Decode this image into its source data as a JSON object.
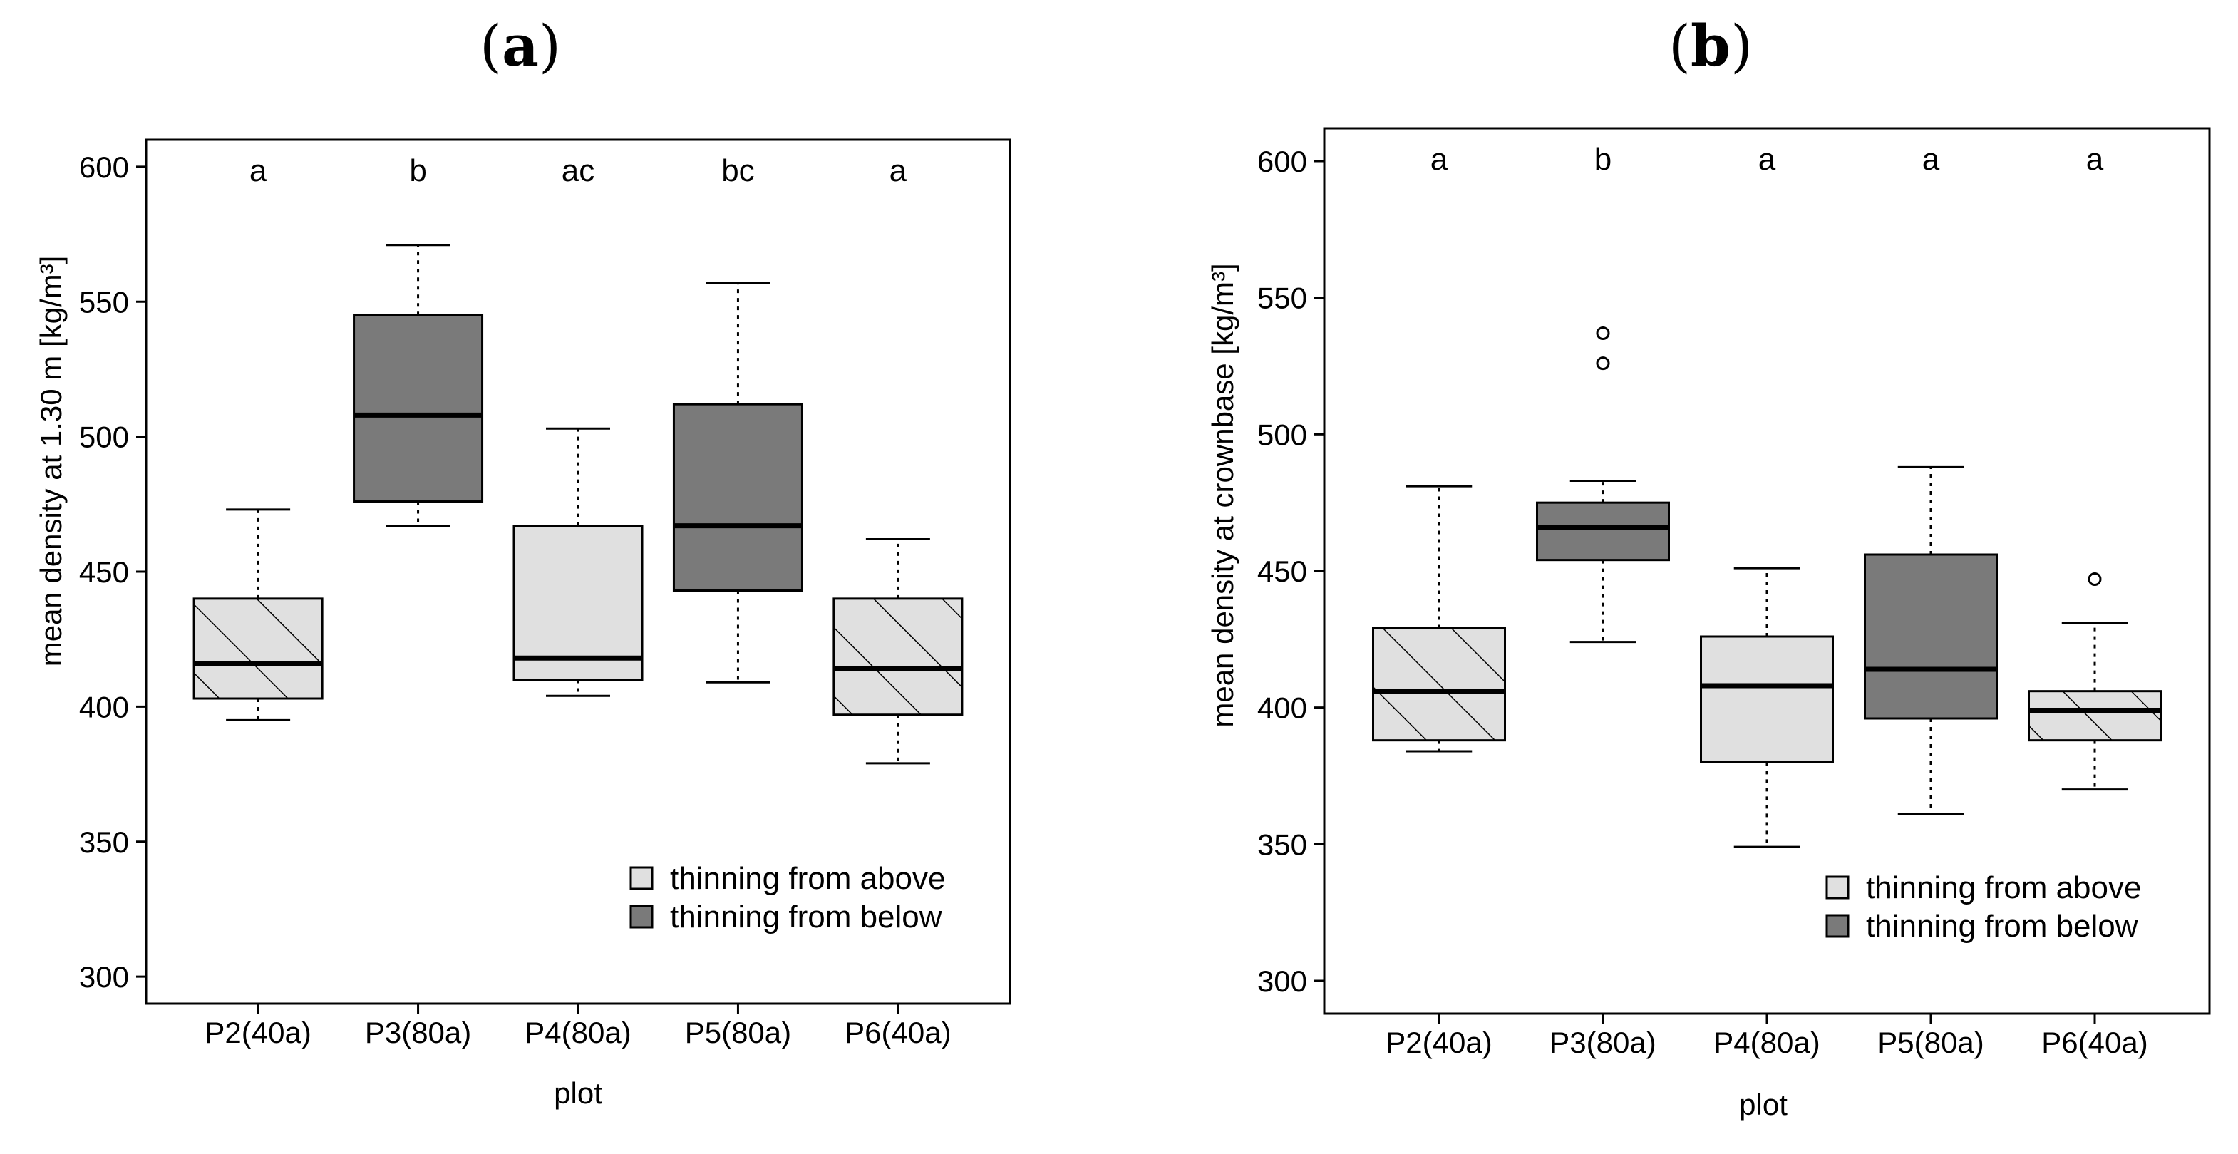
{
  "chart_data": [
    {
      "type": "box",
      "panel_label": "a",
      "xlabel": "plot",
      "ylabel": "mean density at 1.30 m [kg/m³]",
      "ylim": [
        290,
        610
      ],
      "yticks": [
        300,
        350,
        400,
        450,
        500,
        550,
        600
      ],
      "categories": [
        "P2(40a)",
        "P3(80a)",
        "P4(80a)",
        "P5(80a)",
        "P6(40a)"
      ],
      "boxes": [
        {
          "min": 395,
          "q1": 403,
          "median": 416,
          "q3": 440,
          "max": 473,
          "group": "above",
          "age": "40a",
          "outliers": []
        },
        {
          "min": 467,
          "q1": 476,
          "median": 508,
          "q3": 545,
          "max": 571,
          "group": "below",
          "age": "80a",
          "outliers": []
        },
        {
          "min": 404,
          "q1": 410,
          "median": 418,
          "q3": 467,
          "max": 503,
          "group": "above",
          "age": "80a",
          "outliers": []
        },
        {
          "min": 409,
          "q1": 443,
          "median": 467,
          "q3": 512,
          "max": 557,
          "group": "below",
          "age": "80a",
          "outliers": []
        },
        {
          "min": 379,
          "q1": 397,
          "median": 414,
          "q3": 440,
          "max": 462,
          "group": "above",
          "age": "40a",
          "outliers": []
        }
      ],
      "significance": [
        "a",
        "b",
        "ac",
        "bc",
        "a"
      ],
      "significance_y": 600,
      "legend": [
        {
          "label": "thinning from above",
          "color": "#e0e0e0"
        },
        {
          "label": "thinning from below",
          "color": "#7a7a7a"
        }
      ],
      "legend_position": "bottom-right"
    },
    {
      "type": "box",
      "panel_label": "b",
      "xlabel": "plot",
      "ylabel": "mean density at crownbase [kg/m³]",
      "ylim": [
        288,
        612
      ],
      "yticks": [
        300,
        350,
        400,
        450,
        500,
        550,
        600
      ],
      "categories": [
        "P2(40a)",
        "P3(80a)",
        "P4(80a)",
        "P5(80a)",
        "P6(40a)"
      ],
      "boxes": [
        {
          "min": 384,
          "q1": 388,
          "median": 406,
          "q3": 429,
          "max": 481,
          "group": "above",
          "age": "40a",
          "outliers": []
        },
        {
          "min": 424,
          "q1": 454,
          "median": 466,
          "q3": 475,
          "max": 483,
          "group": "below",
          "age": "80a",
          "outliers": [
            526,
            537
          ]
        },
        {
          "min": 349,
          "q1": 380,
          "median": 408,
          "q3": 426,
          "max": 451,
          "group": "above",
          "age": "80a",
          "outliers": []
        },
        {
          "min": 361,
          "q1": 396,
          "median": 414,
          "q3": 456,
          "max": 488,
          "group": "below",
          "age": "80a",
          "outliers": []
        },
        {
          "min": 370,
          "q1": 388,
          "median": 399,
          "q3": 406,
          "max": 431,
          "group": "above",
          "age": "40a",
          "outliers": [
            447
          ]
        }
      ],
      "significance": [
        "a",
        "b",
        "a",
        "a",
        "a"
      ],
      "significance_y": 600,
      "legend": [
        {
          "label": "thinning from above",
          "color": "#e0e0e0"
        },
        {
          "label": "thinning from below",
          "color": "#7a7a7a"
        }
      ],
      "legend_position": "bottom-right"
    }
  ]
}
